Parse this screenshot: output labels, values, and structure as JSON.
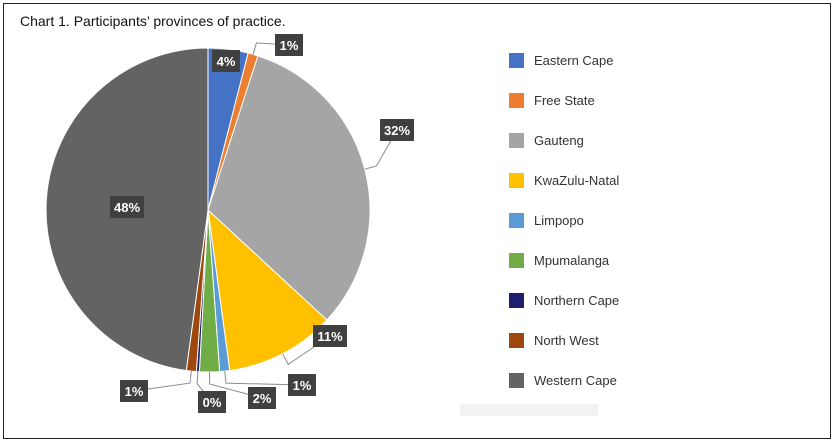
{
  "chart_data": {
    "type": "pie",
    "title": "Chart 1. Participants’ provinces of practice.",
    "slices": [
      {
        "name": "Eastern Cape",
        "value": 4,
        "label": "4%",
        "color": "#4472C4"
      },
      {
        "name": "Free State",
        "value": 1,
        "label": "1%",
        "color": "#ED7D31"
      },
      {
        "name": "Gauteng",
        "value": 32,
        "label": "32%",
        "color": "#A5A5A5"
      },
      {
        "name": "KwaZulu-Natal",
        "value": 11,
        "label": "11%",
        "color": "#FFC000"
      },
      {
        "name": "Limpopo",
        "value": 1,
        "label": "1%",
        "color": "#5B9BD5"
      },
      {
        "name": "Mpumalanga",
        "value": 2,
        "label": "2%",
        "color": "#70AD47"
      },
      {
        "name": "Northern Cape",
        "value": 0.3,
        "label": "0%",
        "color": "#1F1F6E"
      },
      {
        "name": "North West",
        "value": 1,
        "label": "1%",
        "color": "#9E480E"
      },
      {
        "name": "Western Cape",
        "value": 48,
        "label": "48%",
        "color": "#636363"
      }
    ],
    "legend_position": "right"
  }
}
